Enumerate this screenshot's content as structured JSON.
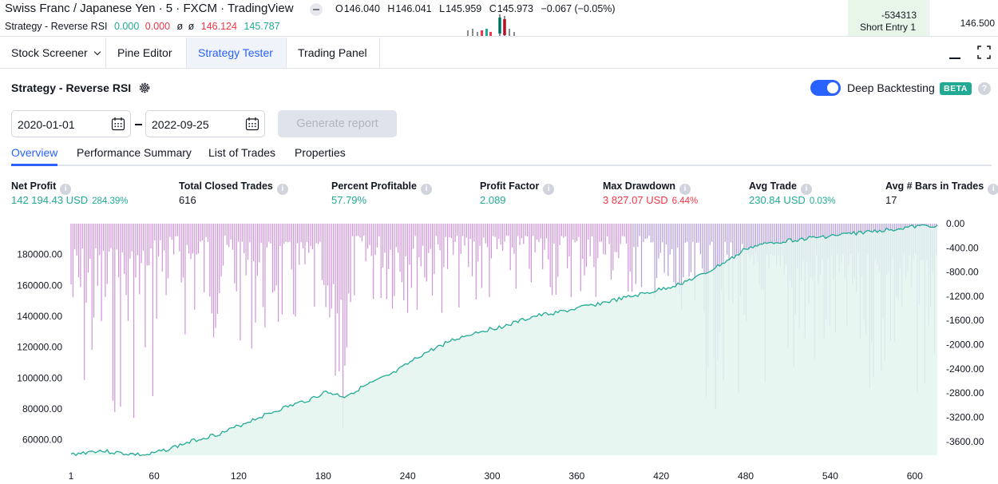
{
  "chart_header": {
    "title": "Swiss Franc / Japanese Yen · 5 · FXCM · TradingView",
    "ohlc": [
      {
        "k": "O",
        "v": "146.040"
      },
      {
        "k": "H",
        "v": "146.041"
      },
      {
        "k": "L",
        "v": "145.959"
      },
      {
        "k": "C",
        "v": "145.973"
      }
    ],
    "change": "−0.067 (−0.05%)",
    "strategy_line": {
      "name": "Strategy - Reverse RSI",
      "v1": "0.000",
      "v2": "0.000",
      "d1": "ø",
      "d2": "ø",
      "p1": "146.124",
      "p2": "145.787"
    },
    "short_entry_value": "-534313",
    "short_entry_label": "Short Entry 1",
    "price_label": "146.500"
  },
  "tabs": [
    {
      "label": "Stock Screener"
    },
    {
      "label": "Pine Editor"
    },
    {
      "label": "Strategy Tester"
    },
    {
      "label": "Trading Panel"
    }
  ],
  "strategy": {
    "name": "Strategy - Reverse RSI",
    "deep_backtesting": "Deep Backtesting",
    "beta": "BETA",
    "help": "?"
  },
  "dates": {
    "from": "2020-01-01",
    "to": "2022-09-25"
  },
  "generate_label": "Generate report",
  "subtabs": [
    "Overview",
    "Performance Summary",
    "List of Trades",
    "Properties"
  ],
  "metrics": [
    {
      "label": "Net Profit",
      "value": "142 194.43 USD",
      "pct": "284.39%",
      "color": "green"
    },
    {
      "label": "Total Closed Trades",
      "value": "616",
      "pct": "",
      "color": "dark"
    },
    {
      "label": "Percent Profitable",
      "value": "57.79%",
      "pct": "",
      "color": "green"
    },
    {
      "label": "Profit Factor",
      "value": "2.089",
      "pct": "",
      "color": "green"
    },
    {
      "label": "Max Drawdown",
      "value": "3 827.07 USD",
      "pct": "6.44%",
      "color": "red"
    },
    {
      "label": "Avg Trade",
      "value": "230.84 USD",
      "pct": "0.03%",
      "color": "green"
    },
    {
      "label": "Avg # Bars in Trades",
      "value": "17",
      "pct": "",
      "color": "dark"
    }
  ],
  "chart_data": {
    "type": "area",
    "colors": {
      "equity": "#22ab94",
      "equity_fill": "#e3f4ef",
      "drawdown": "#ce93d8"
    },
    "x_ticks": [
      "1",
      "60",
      "120",
      "180",
      "240",
      "300",
      "360",
      "420",
      "480",
      "540",
      "600"
    ],
    "x_range": [
      1,
      616
    ],
    "left_axis": {
      "ticks": [
        "60000.00",
        "80000.00",
        "100000.00",
        "120000.00",
        "140000.00",
        "160000.00",
        "180000.00"
      ],
      "range": [
        50000,
        200000
      ]
    },
    "right_axis": {
      "ticks": [
        "0.00",
        "-400.00",
        "-800.00",
        "-1200.00",
        "-1600.00",
        "-2000.00",
        "-2400.00",
        "-2800.00",
        "-3200.00",
        "-3600.00"
      ],
      "range": [
        -3827.07,
        0
      ]
    },
    "series": [
      {
        "type": "area",
        "x": [
          1,
          20,
          40,
          55,
          70,
          90,
          110,
          130,
          150,
          170,
          182,
          195,
          210,
          230,
          250,
          270,
          290,
          310,
          330,
          350,
          370,
          390,
          410,
          430,
          450,
          465,
          475,
          480,
          500,
          520,
          540,
          560,
          580,
          600,
          616
        ],
        "values": [
          50500,
          53000,
          51000,
          50000,
          54000,
          60000,
          65000,
          73000,
          80000,
          86000,
          91000,
          88000,
          95000,
          103000,
          115000,
          124000,
          130000,
          134000,
          140000,
          143000,
          147000,
          151000,
          155000,
          160000,
          167000,
          175000,
          180000,
          184000,
          188000,
          190000,
          192000,
          194000,
          196000,
          198000,
          199000
        ]
      },
      {
        "type": "bar",
        "drawdown_segments": [
          {
            "x": [
              1,
              60
            ],
            "depth": [
              -400,
              -3300
            ]
          },
          {
            "x": [
              60,
              120
            ],
            "depth": [
              -200,
              -2000
            ]
          },
          {
            "x": [
              120,
              180
            ],
            "depth": [
              -300,
              -2100
            ]
          },
          {
            "x": [
              180,
              200
            ],
            "depth": [
              -1000,
              -3800
            ]
          },
          {
            "x": [
              200,
              300
            ],
            "depth": [
              -200,
              -1500
            ]
          },
          {
            "x": [
              300,
              420
            ],
            "depth": [
              -200,
              -1300
            ]
          },
          {
            "x": [
              420,
              480
            ],
            "depth": [
              -300,
              -3100
            ]
          },
          {
            "x": [
              480,
              616
            ],
            "depth": [
              -500,
              -2900
            ]
          }
        ]
      }
    ]
  }
}
